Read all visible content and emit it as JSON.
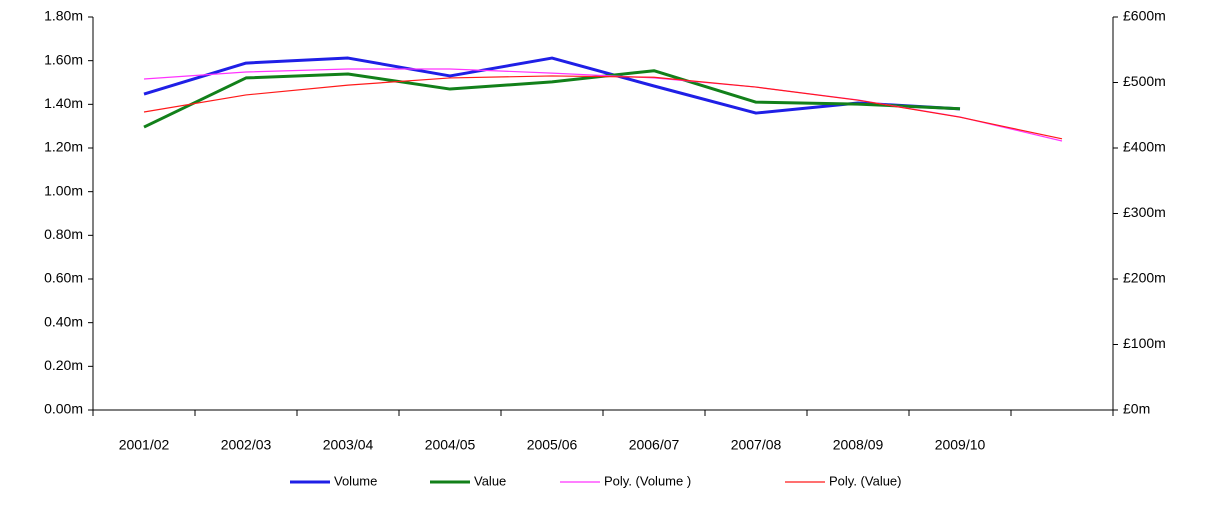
{
  "chart_data": {
    "type": "line",
    "categories": [
      "2001/02",
      "2002/03",
      "2003/04",
      "2004/05",
      "2005/06",
      "2006/07",
      "2007/08",
      "2008/09",
      "2009/10",
      null
    ],
    "series": [
      {
        "name": "Volume",
        "color": "#1f1fe6",
        "width": 3,
        "axis": "y",
        "values": [
          1.447,
          1.589,
          1.612,
          1.53,
          1.612,
          1.484,
          1.36,
          1.406,
          1.379,
          null
        ]
      },
      {
        "name": "Value",
        "color": "#12801a",
        "width": 3,
        "axis": "y2",
        "values": [
          432,
          507,
          513,
          490,
          501,
          518,
          470,
          467,
          460,
          null
        ]
      },
      {
        "name": "Poly. (Volume )",
        "color": "#ff33ff",
        "width": 1.2,
        "axis": "y",
        "values": [
          1.516,
          1.548,
          1.562,
          1.562,
          1.543,
          1.521,
          1.479,
          1.42,
          1.342,
          1.232
        ]
      },
      {
        "name": "Poly. (Value)",
        "color": "#ff1a1a",
        "width": 1.2,
        "axis": "y2",
        "values": [
          455,
          481,
          496,
          507,
          510,
          508,
          493,
          473,
          447,
          414
        ]
      }
    ],
    "ylim": [
      0,
      1.8
    ],
    "yticks": [
      {
        "value": 0,
        "label": "0.00m"
      },
      {
        "value": 0.2,
        "label": "0.20m"
      },
      {
        "value": 0.4,
        "label": "0.40m"
      },
      {
        "value": 0.6,
        "label": "0.60m"
      },
      {
        "value": 0.8,
        "label": "0.80m"
      },
      {
        "value": 1.0,
        "label": "1.00m"
      },
      {
        "value": 1.2,
        "label": "1.20m"
      },
      {
        "value": 1.4,
        "label": "1.40m"
      },
      {
        "value": 1.6,
        "label": "1.60m"
      },
      {
        "value": 1.8,
        "label": "1.80m"
      }
    ],
    "y2lim": [
      0,
      600
    ],
    "y2ticks": [
      {
        "value": 0,
        "label": "£0m"
      },
      {
        "value": 100,
        "label": "£100m"
      },
      {
        "value": 200,
        "label": "£200m"
      },
      {
        "value": 300,
        "label": "£300m"
      },
      {
        "value": 400,
        "label": "£400m"
      },
      {
        "value": 500,
        "label": "£500m"
      },
      {
        "value": 600,
        "label": "£600m"
      }
    ],
    "grid": false,
    "legend": "bottom"
  }
}
